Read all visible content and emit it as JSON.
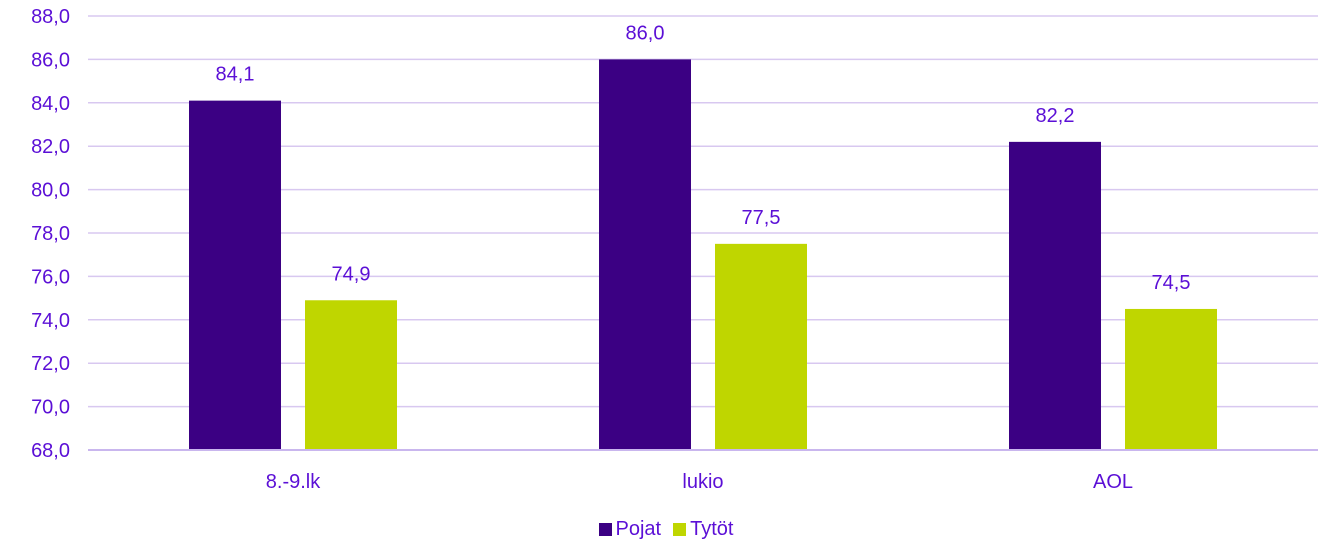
{
  "chart_data": {
    "type": "bar",
    "categories": [
      "8.-9.lk",
      "lukio",
      "AOL"
    ],
    "series": [
      {
        "name": "Pojat",
        "values": [
          84.1,
          86.0,
          82.2
        ],
        "color": "#3b0083"
      },
      {
        "name": "Tytöt",
        "values": [
          74.9,
          77.5,
          74.5
        ],
        "color": "#bfd600"
      }
    ],
    "value_labels": [
      [
        "84,1",
        "86,0",
        "82,2"
      ],
      [
        "74,9",
        "77,5",
        "74,5"
      ]
    ],
    "yticks": [
      "68,0",
      "70,0",
      "72,0",
      "74,0",
      "76,0",
      "78,0",
      "80,0",
      "82,0",
      "84,0",
      "86,0",
      "88,0"
    ],
    "ylim": [
      68,
      88
    ],
    "grid": true,
    "legend_position": "bottom",
    "title": "",
    "xlabel": "",
    "ylabel": ""
  },
  "colors": {
    "text": "#5b0fd6",
    "grid": "#d8c8f0",
    "axis": "#c9b6ee"
  }
}
